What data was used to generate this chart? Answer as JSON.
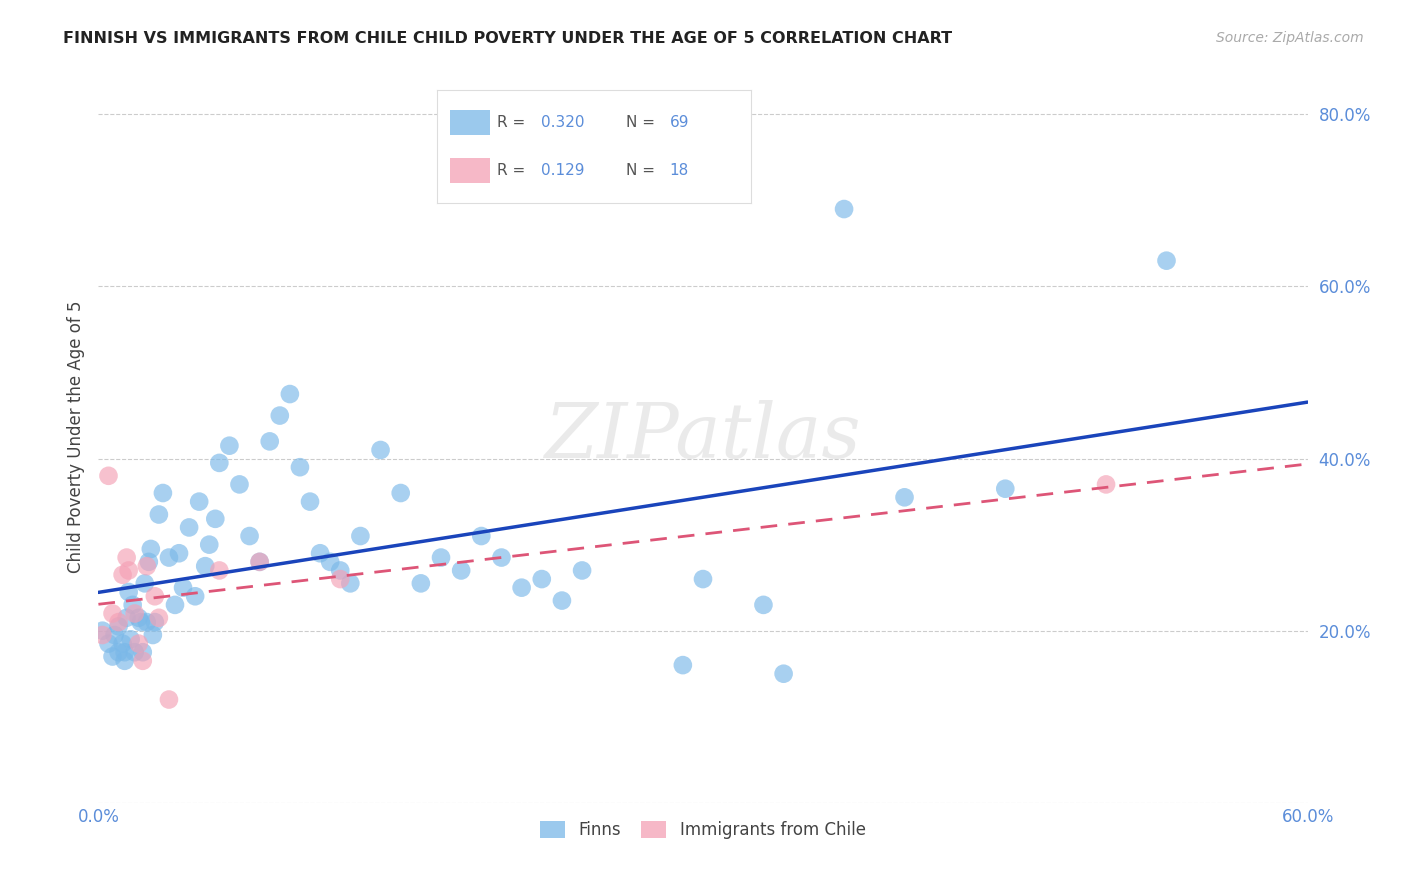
{
  "title": "FINNISH VS IMMIGRANTS FROM CHILE CHILD POVERTY UNDER THE AGE OF 5 CORRELATION CHART",
  "source": "Source: ZipAtlas.com",
  "ylabel": "Child Poverty Under the Age of 5",
  "xlim": [
    0.0,
    0.6
  ],
  "ylim": [
    0.0,
    0.85
  ],
  "yticks": [
    0.2,
    0.4,
    0.6,
    0.8
  ],
  "xticks": [
    0.0,
    0.6
  ],
  "background_color": "#ffffff",
  "watermark": "ZIPatlas",
  "finns_color": "#7ab8e8",
  "chile_color": "#f4a0b5",
  "finns_line_color": "#1a44bb",
  "chile_line_color": "#dd5577",
  "finns_R": 0.32,
  "finns_N": 69,
  "chile_R": 0.129,
  "chile_N": 18,
  "finns_x": [
    0.002,
    0.005,
    0.007,
    0.008,
    0.01,
    0.01,
    0.012,
    0.013,
    0.013,
    0.014,
    0.015,
    0.016,
    0.017,
    0.018,
    0.02,
    0.021,
    0.022,
    0.023,
    0.024,
    0.025,
    0.026,
    0.027,
    0.028,
    0.03,
    0.032,
    0.035,
    0.038,
    0.04,
    0.042,
    0.045,
    0.048,
    0.05,
    0.053,
    0.055,
    0.058,
    0.06,
    0.065,
    0.07,
    0.075,
    0.08,
    0.085,
    0.09,
    0.095,
    0.1,
    0.105,
    0.11,
    0.115,
    0.12,
    0.125,
    0.13,
    0.14,
    0.15,
    0.16,
    0.17,
    0.18,
    0.19,
    0.2,
    0.21,
    0.22,
    0.23,
    0.24,
    0.29,
    0.3,
    0.33,
    0.34,
    0.37,
    0.4,
    0.45,
    0.53
  ],
  "finns_y": [
    0.2,
    0.185,
    0.17,
    0.195,
    0.175,
    0.205,
    0.185,
    0.175,
    0.165,
    0.215,
    0.245,
    0.19,
    0.23,
    0.175,
    0.215,
    0.21,
    0.175,
    0.255,
    0.21,
    0.28,
    0.295,
    0.195,
    0.21,
    0.335,
    0.36,
    0.285,
    0.23,
    0.29,
    0.25,
    0.32,
    0.24,
    0.35,
    0.275,
    0.3,
    0.33,
    0.395,
    0.415,
    0.37,
    0.31,
    0.28,
    0.42,
    0.45,
    0.475,
    0.39,
    0.35,
    0.29,
    0.28,
    0.27,
    0.255,
    0.31,
    0.41,
    0.36,
    0.255,
    0.285,
    0.27,
    0.31,
    0.285,
    0.25,
    0.26,
    0.235,
    0.27,
    0.16,
    0.26,
    0.23,
    0.15,
    0.69,
    0.355,
    0.365,
    0.63
  ],
  "chile_x": [
    0.002,
    0.005,
    0.007,
    0.01,
    0.012,
    0.014,
    0.015,
    0.018,
    0.02,
    0.022,
    0.024,
    0.028,
    0.03,
    0.035,
    0.06,
    0.08,
    0.12,
    0.5
  ],
  "chile_y": [
    0.195,
    0.38,
    0.22,
    0.21,
    0.265,
    0.285,
    0.27,
    0.22,
    0.185,
    0.165,
    0.275,
    0.24,
    0.215,
    0.12,
    0.27,
    0.28,
    0.26,
    0.37
  ]
}
